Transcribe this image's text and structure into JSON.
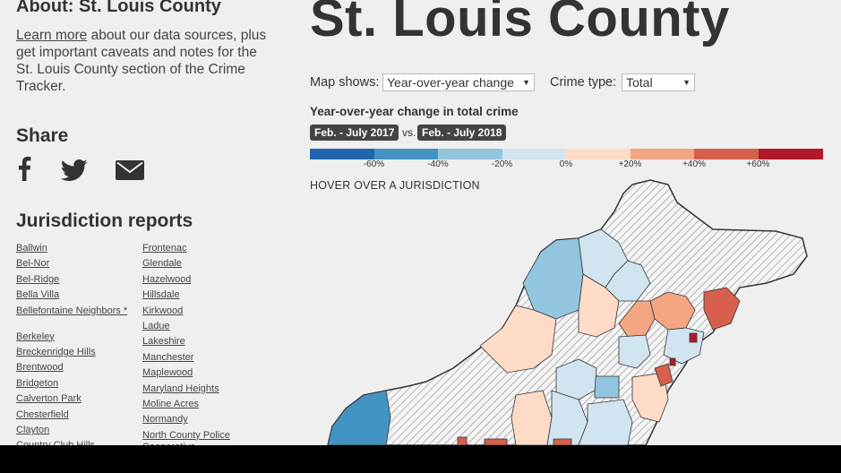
{
  "about": {
    "title": "About: St. Louis County",
    "link_text": "Learn more",
    "text_rest": " about our data sources, plus get important caveats and notes for the St. Louis County section of the Crime Tracker."
  },
  "share": {
    "title": "Share",
    "icons": [
      "facebook-icon",
      "twitter-icon",
      "email-icon"
    ]
  },
  "jurisdiction_reports": {
    "title": "Jurisdiction reports",
    "col1": [
      "Ballwin",
      "Bel-Nor",
      "Bel-Ridge",
      "Bella Villa",
      "Bellefontaine Neighbors *",
      "Berkeley",
      "Breckenridge Hills",
      "Brentwood",
      "Bridgeton",
      "Calverton Park",
      "Chesterfield",
      "Clayton",
      "Country Club Hills"
    ],
    "col2": [
      "Frontenac",
      "Glendale",
      "Hazelwood",
      "Hillsdale",
      "Kirkwood",
      "Ladue",
      "Lakeshire",
      "Manchester",
      "Maplewood",
      "Maryland Heights",
      "Moline Acres",
      "Normandy",
      "North County Police Cooperative"
    ]
  },
  "header": {
    "title": "St. Louis County"
  },
  "controls": {
    "map_shows_label": "Map shows:",
    "map_shows_value": "Year-over-year change",
    "crime_type_label": "Crime type:",
    "crime_type_value": "Total"
  },
  "legend": {
    "title": "Year-over-year change in total crime",
    "period_a": "Feb. - July 2017",
    "vs": "vs.",
    "period_b": "Feb. - July 2018",
    "ticks": [
      "-60%",
      "-40%",
      "-20%",
      "0%",
      "+20%",
      "+40%",
      "+60%"
    ],
    "colors": [
      "#2166ac",
      "#4393c3",
      "#92c5de",
      "#d1e5f0",
      "#fddbc7",
      "#f4a582",
      "#d6604d",
      "#b2182b"
    ]
  },
  "hover_hint": "HOVER OVER A JURISDICTION"
}
